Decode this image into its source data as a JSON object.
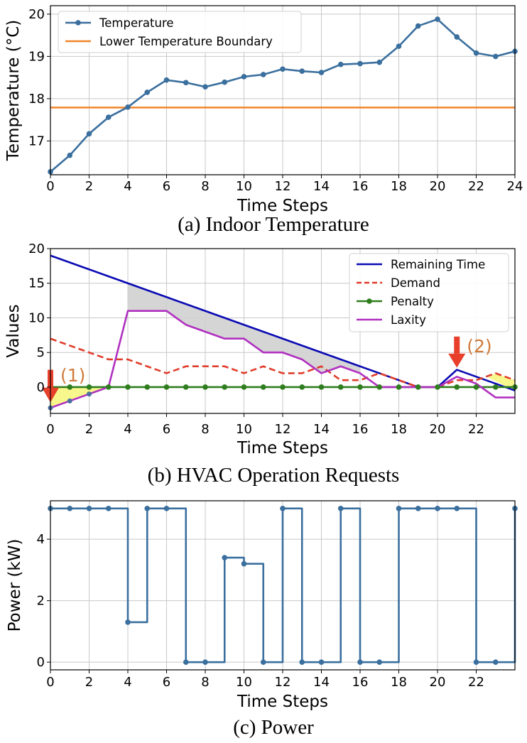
{
  "chart_data": [
    {
      "type": "line",
      "caption": "(a) Indoor Temperature",
      "xlabel": "Time Steps",
      "ylabel": "Temperature (°C)",
      "xlim": [
        0,
        24
      ],
      "ylim": [
        16.2,
        20.2
      ],
      "xticks": [
        0,
        2,
        4,
        6,
        8,
        10,
        12,
        14,
        16,
        18,
        20,
        22,
        24
      ],
      "yticks": [
        17,
        18,
        19,
        20
      ],
      "grid": true,
      "legend_position": "upper-left",
      "x": [
        0,
        1,
        2,
        3,
        4,
        5,
        6,
        7,
        8,
        9,
        10,
        11,
        12,
        13,
        14,
        15,
        16,
        17,
        18,
        19,
        20,
        21,
        22,
        23,
        24
      ],
      "series": [
        {
          "name": "Temperature",
          "color": "#3a6f9e",
          "marker": "circle",
          "values": [
            16.27,
            16.66,
            17.17,
            17.56,
            17.8,
            18.15,
            18.44,
            18.38,
            18.28,
            18.39,
            18.52,
            18.57,
            18.7,
            18.65,
            18.62,
            18.81,
            18.83,
            18.86,
            19.24,
            19.72,
            19.88,
            19.46,
            19.08,
            19.0,
            19.12
          ]
        },
        {
          "name": "Lower Temperature Boundary",
          "color": "#f0852a",
          "constant": 17.79
        }
      ]
    },
    {
      "type": "line",
      "caption": "(b) HVAC Operation Requests",
      "xlabel": "Time Steps",
      "ylabel": "Values",
      "xlim": [
        0,
        24
      ],
      "ylim": [
        -3.8,
        20
      ],
      "xticks": [
        0,
        2,
        4,
        6,
        8,
        10,
        12,
        14,
        16,
        18,
        20,
        22
      ],
      "yticks": [
        0,
        5,
        10,
        15,
        20
      ],
      "grid": true,
      "legend_position": "upper-right",
      "x": [
        0,
        1,
        2,
        3,
        4,
        5,
        6,
        7,
        8,
        9,
        10,
        11,
        12,
        13,
        14,
        15,
        16,
        17,
        18,
        19,
        20,
        21,
        22,
        23,
        24
      ],
      "series": [
        {
          "name": "Remaining Time",
          "color": "#0a0ab4",
          "style": "solid",
          "values": [
            19,
            18,
            17,
            16,
            15,
            14,
            13,
            12,
            11,
            10,
            9,
            8,
            7,
            6,
            5,
            4,
            3,
            2,
            1,
            0,
            0,
            2.5,
            1.5,
            0.5,
            -0.5
          ]
        },
        {
          "name": "Demand",
          "color": "#e03c2a",
          "style": "dashed",
          "values": [
            7,
            6,
            5,
            4,
            4,
            3,
            2,
            3,
            3,
            3,
            2,
            3,
            2,
            2,
            3,
            1,
            1,
            2,
            1,
            0,
            0,
            1,
            1,
            2,
            1
          ]
        },
        {
          "name": "Penalty",
          "color": "#2e7d1e",
          "style": "solid",
          "marker": "circle",
          "values": [
            0,
            0,
            0,
            0,
            0,
            0,
            0,
            0,
            0,
            0,
            0,
            0,
            0,
            0,
            0,
            0,
            0,
            0,
            0,
            0,
            0,
            0,
            0,
            0,
            0
          ]
        },
        {
          "name": "Laxity",
          "color": "#b030c0",
          "style": "solid",
          "values": [
            -3,
            -2,
            -1,
            0,
            11,
            11,
            11,
            9,
            8,
            7,
            7,
            5,
            5,
            4,
            2,
            3,
            2,
            0,
            0,
            0,
            0,
            1.5,
            0.5,
            -1.5,
            -1.5
          ]
        }
      ],
      "annotations": [
        {
          "label": "(1)",
          "x": 0
        },
        {
          "label": "(2)",
          "x": 21
        }
      ]
    },
    {
      "type": "line",
      "caption": "(c) Power",
      "xlabel": "Time Steps",
      "ylabel": "Power (kW)",
      "xlim": [
        0,
        24
      ],
      "ylim": [
        -0.25,
        5.25
      ],
      "xticks": [
        0,
        2,
        4,
        6,
        8,
        10,
        12,
        14,
        16,
        18,
        20,
        22
      ],
      "yticks": [
        0,
        2,
        4
      ],
      "grid": true,
      "step": "post",
      "x": [
        0,
        1,
        2,
        3,
        4,
        5,
        6,
        7,
        8,
        9,
        10,
        11,
        12,
        13,
        14,
        15,
        16,
        17,
        18,
        19,
        20,
        21,
        22,
        23,
        24
      ],
      "series": [
        {
          "name": "Power",
          "color": "#3a6f9e",
          "marker": "circle",
          "values": [
            5,
            5,
            5,
            5,
            1.3,
            5,
            5,
            0,
            0,
            3.4,
            3.2,
            0,
            5,
            0,
            0,
            5,
            0,
            0,
            5,
            5,
            5,
            5,
            0,
            0,
            5
          ]
        }
      ]
    }
  ]
}
